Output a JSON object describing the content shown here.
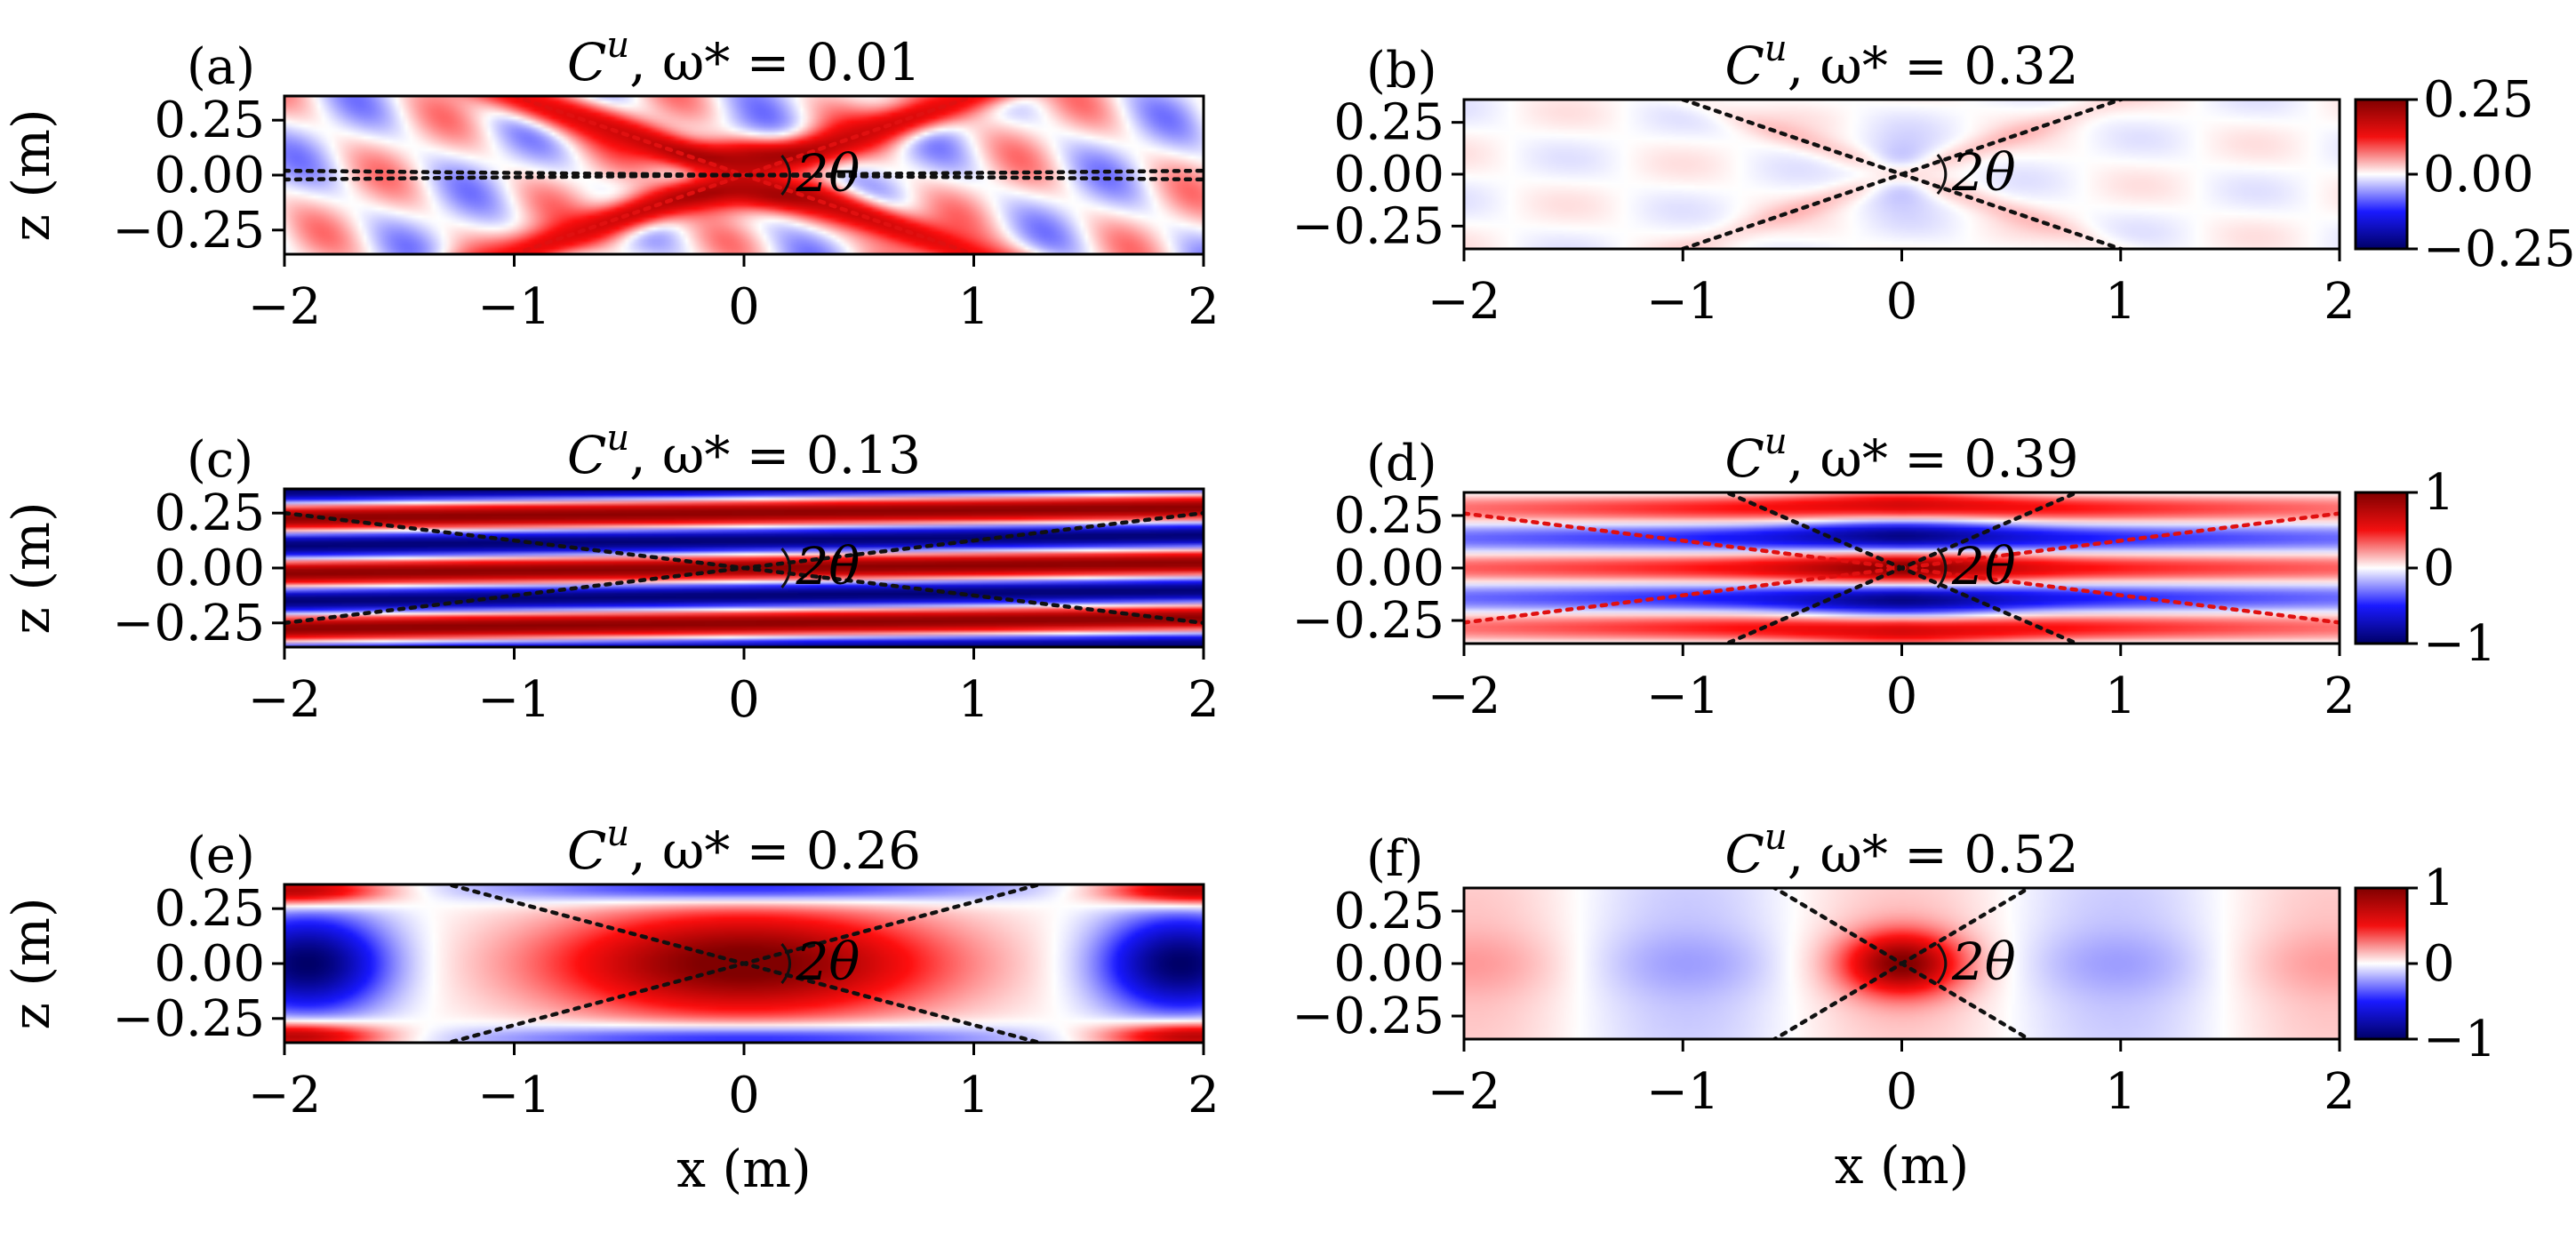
{
  "chart_data": [
    {
      "type": "heatmap",
      "panel_label": "(a)",
      "title": "C^u, ω* = 0.01",
      "title_var": "C",
      "title_sup": "u",
      "title_rest": ", ω* = 0.01",
      "xlabel": "",
      "ylabel": "z (m)",
      "xlim": [
        -2,
        2
      ],
      "ylim": [
        -0.36,
        0.36
      ],
      "xticks": [
        "−2",
        "−1",
        "0",
        "1",
        "2"
      ],
      "yticks": [
        "0.25",
        "0.00",
        "−0.25"
      ],
      "annotation": "2θ",
      "lines": [
        {
          "color": "#e01010",
          "slope": 0.36
        },
        {
          "color": "#e01010",
          "slope": -0.36
        },
        {
          "color": "#111111",
          "slope": 0.01
        },
        {
          "color": "#111111",
          "slope": -0.01
        }
      ],
      "pattern": {
        "kind": "cone",
        "kx": 9,
        "kz": 10,
        "amp": 0.7,
        "envelope": 0.9
      }
    },
    {
      "type": "heatmap",
      "panel_label": "(b)",
      "title": "C^u, ω* = 0.32",
      "title_var": "C",
      "title_sup": "u",
      "title_rest": ", ω* = 0.32",
      "xlabel": "",
      "ylabel": "",
      "xlim": [
        -2,
        2
      ],
      "ylim": [
        -0.36,
        0.36
      ],
      "xticks": [
        "−2",
        "−1",
        "0",
        "1",
        "2"
      ],
      "yticks": [
        "0.25",
        "0.00",
        "−0.25"
      ],
      "annotation": "2θ",
      "lines": [
        {
          "color": "#111111",
          "slope": 0.36
        },
        {
          "color": "#111111",
          "slope": -0.36
        }
      ],
      "colorbar": {
        "min": -0.25,
        "max": 0.25,
        "ticks": [
          "0.25",
          "0.00",
          "−0.25"
        ]
      },
      "pattern": {
        "kind": "weak",
        "kx": 6,
        "kz": 14,
        "amp": 0.22,
        "envelope": 0.3
      }
    },
    {
      "type": "heatmap",
      "panel_label": "(c)",
      "title": "C^u, ω* = 0.13",
      "title_var": "C",
      "title_sup": "u",
      "title_rest": ", ω* = 0.13",
      "xlabel": "",
      "ylabel": "z (m)",
      "xlim": [
        -2,
        2
      ],
      "ylim": [
        -0.36,
        0.36
      ],
      "xticks": [
        "−2",
        "−1",
        "0",
        "1",
        "2"
      ],
      "yticks": [
        "0.25",
        "0.00",
        "−0.25"
      ],
      "annotation": "2θ",
      "lines": [
        {
          "color": "#111111",
          "slope": 0.125
        },
        {
          "color": "#111111",
          "slope": -0.125
        }
      ],
      "pattern": {
        "kind": "stripes",
        "kx": 1.2,
        "kz": 25,
        "amp": 0.95,
        "tilt": 0.06
      }
    },
    {
      "type": "heatmap",
      "panel_label": "(d)",
      "title": "C^u, ω* = 0.39",
      "title_var": "C",
      "title_sup": "u",
      "title_rest": ", ω* = 0.39",
      "xlabel": "",
      "ylabel": "",
      "xlim": [
        -2,
        2
      ],
      "ylim": [
        -0.36,
        0.36
      ],
      "xticks": [
        "−2",
        "−1",
        "0",
        "1",
        "2"
      ],
      "yticks": [
        "0.25",
        "0.00",
        "−0.25"
      ],
      "annotation": "2θ",
      "lines": [
        {
          "color": "#e01010",
          "slope": 0.13
        },
        {
          "color": "#e01010",
          "slope": -0.13
        },
        {
          "color": "#111111",
          "slope": 0.45
        },
        {
          "color": "#111111",
          "slope": -0.45
        }
      ],
      "colorbar": {
        "min": -1,
        "max": 1,
        "ticks": [
          "1",
          "0",
          "−1"
        ]
      },
      "pattern": {
        "kind": "cross",
        "kx": 2.5,
        "kz": 22,
        "amp": 0.9
      }
    },
    {
      "type": "heatmap",
      "panel_label": "(e)",
      "title": "C^u, ω* = 0.26",
      "title_var": "C",
      "title_sup": "u",
      "title_rest": ", ω* = 0.26",
      "xlabel": "x (m)",
      "ylabel": "z (m)",
      "xlim": [
        -2,
        2
      ],
      "ylim": [
        -0.36,
        0.36
      ],
      "xticks": [
        "−2",
        "−1",
        "0",
        "1",
        "2"
      ],
      "yticks": [
        "0.25",
        "0.00",
        "−0.25"
      ],
      "annotation": "2θ",
      "lines": [
        {
          "color": "#111111",
          "slope": 0.28
        },
        {
          "color": "#111111",
          "slope": -0.28
        }
      ],
      "pattern": {
        "kind": "blob",
        "kx": 1.6,
        "kz": 11,
        "amp": 1.0
      }
    },
    {
      "type": "heatmap",
      "panel_label": "(f)",
      "title": "C^u, ω* = 0.52",
      "title_var": "C",
      "title_sup": "u",
      "title_rest": ", ω* = 0.52",
      "xlabel": "x (m)",
      "ylabel": "",
      "xlim": [
        -2,
        2
      ],
      "ylim": [
        -0.36,
        0.36
      ],
      "xticks": [
        "−2",
        "−1",
        "0",
        "1",
        "2"
      ],
      "yticks": [
        "0.25",
        "0.00",
        "−0.25"
      ],
      "annotation": "2θ",
      "lines": [
        {
          "color": "#111111",
          "slope": 0.62
        },
        {
          "color": "#111111",
          "slope": -0.62
        }
      ],
      "colorbar": {
        "min": -1,
        "max": 1,
        "ticks": [
          "1",
          "0",
          "−1"
        ]
      },
      "pattern": {
        "kind": "cells",
        "kx": 3.2,
        "kz": 9,
        "amp": 0.6
      }
    }
  ]
}
